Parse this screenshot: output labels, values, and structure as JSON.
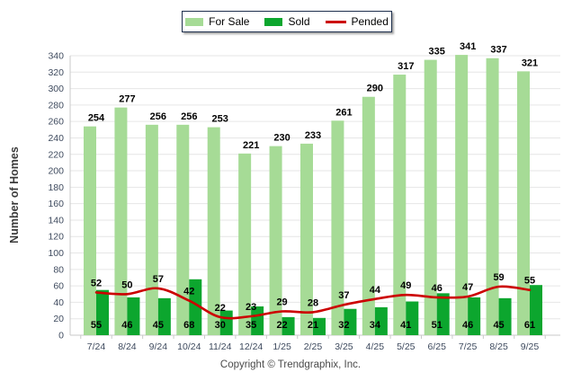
{
  "chart_data": {
    "type": "bar",
    "categories": [
      "7/24",
      "8/24",
      "9/24",
      "10/24",
      "11/24",
      "12/24",
      "1/25",
      "2/25",
      "3/25",
      "4/25",
      "5/25",
      "6/25",
      "7/25",
      "8/25",
      "9/25"
    ],
    "series": [
      {
        "name": "For Sale",
        "type": "bar",
        "color": "#A6DB96",
        "values": [
          254,
          277,
          256,
          256,
          253,
          221,
          230,
          233,
          261,
          290,
          317,
          335,
          341,
          337,
          321
        ]
      },
      {
        "name": "Sold",
        "type": "bar",
        "color": "#0CA62E",
        "values": [
          55,
          46,
          45,
          68,
          30,
          35,
          22,
          21,
          32,
          34,
          41,
          51,
          46,
          45,
          61
        ]
      },
      {
        "name": "Pended",
        "type": "line",
        "color": "#CC0000",
        "values": [
          52,
          50,
          57,
          42,
          22,
          23,
          29,
          28,
          37,
          44,
          49,
          46,
          47,
          59,
          55
        ]
      }
    ],
    "title": "",
    "xlabel": "",
    "ylabel": "Number of Homes",
    "ylim": [
      0,
      340
    ],
    "ytick_step": 20,
    "grid": "horizontal",
    "legend_position": "top-center",
    "value_labels": true
  },
  "colors": {
    "grid": "#E6E6E6",
    "axis": "#C9C9C9",
    "tick_text": "#3E4A5E",
    "value_text": "#000000",
    "legend_border": "#1E2F4D"
  },
  "footer": {
    "copyright": "Copyright © Trendgraphix, Inc."
  }
}
